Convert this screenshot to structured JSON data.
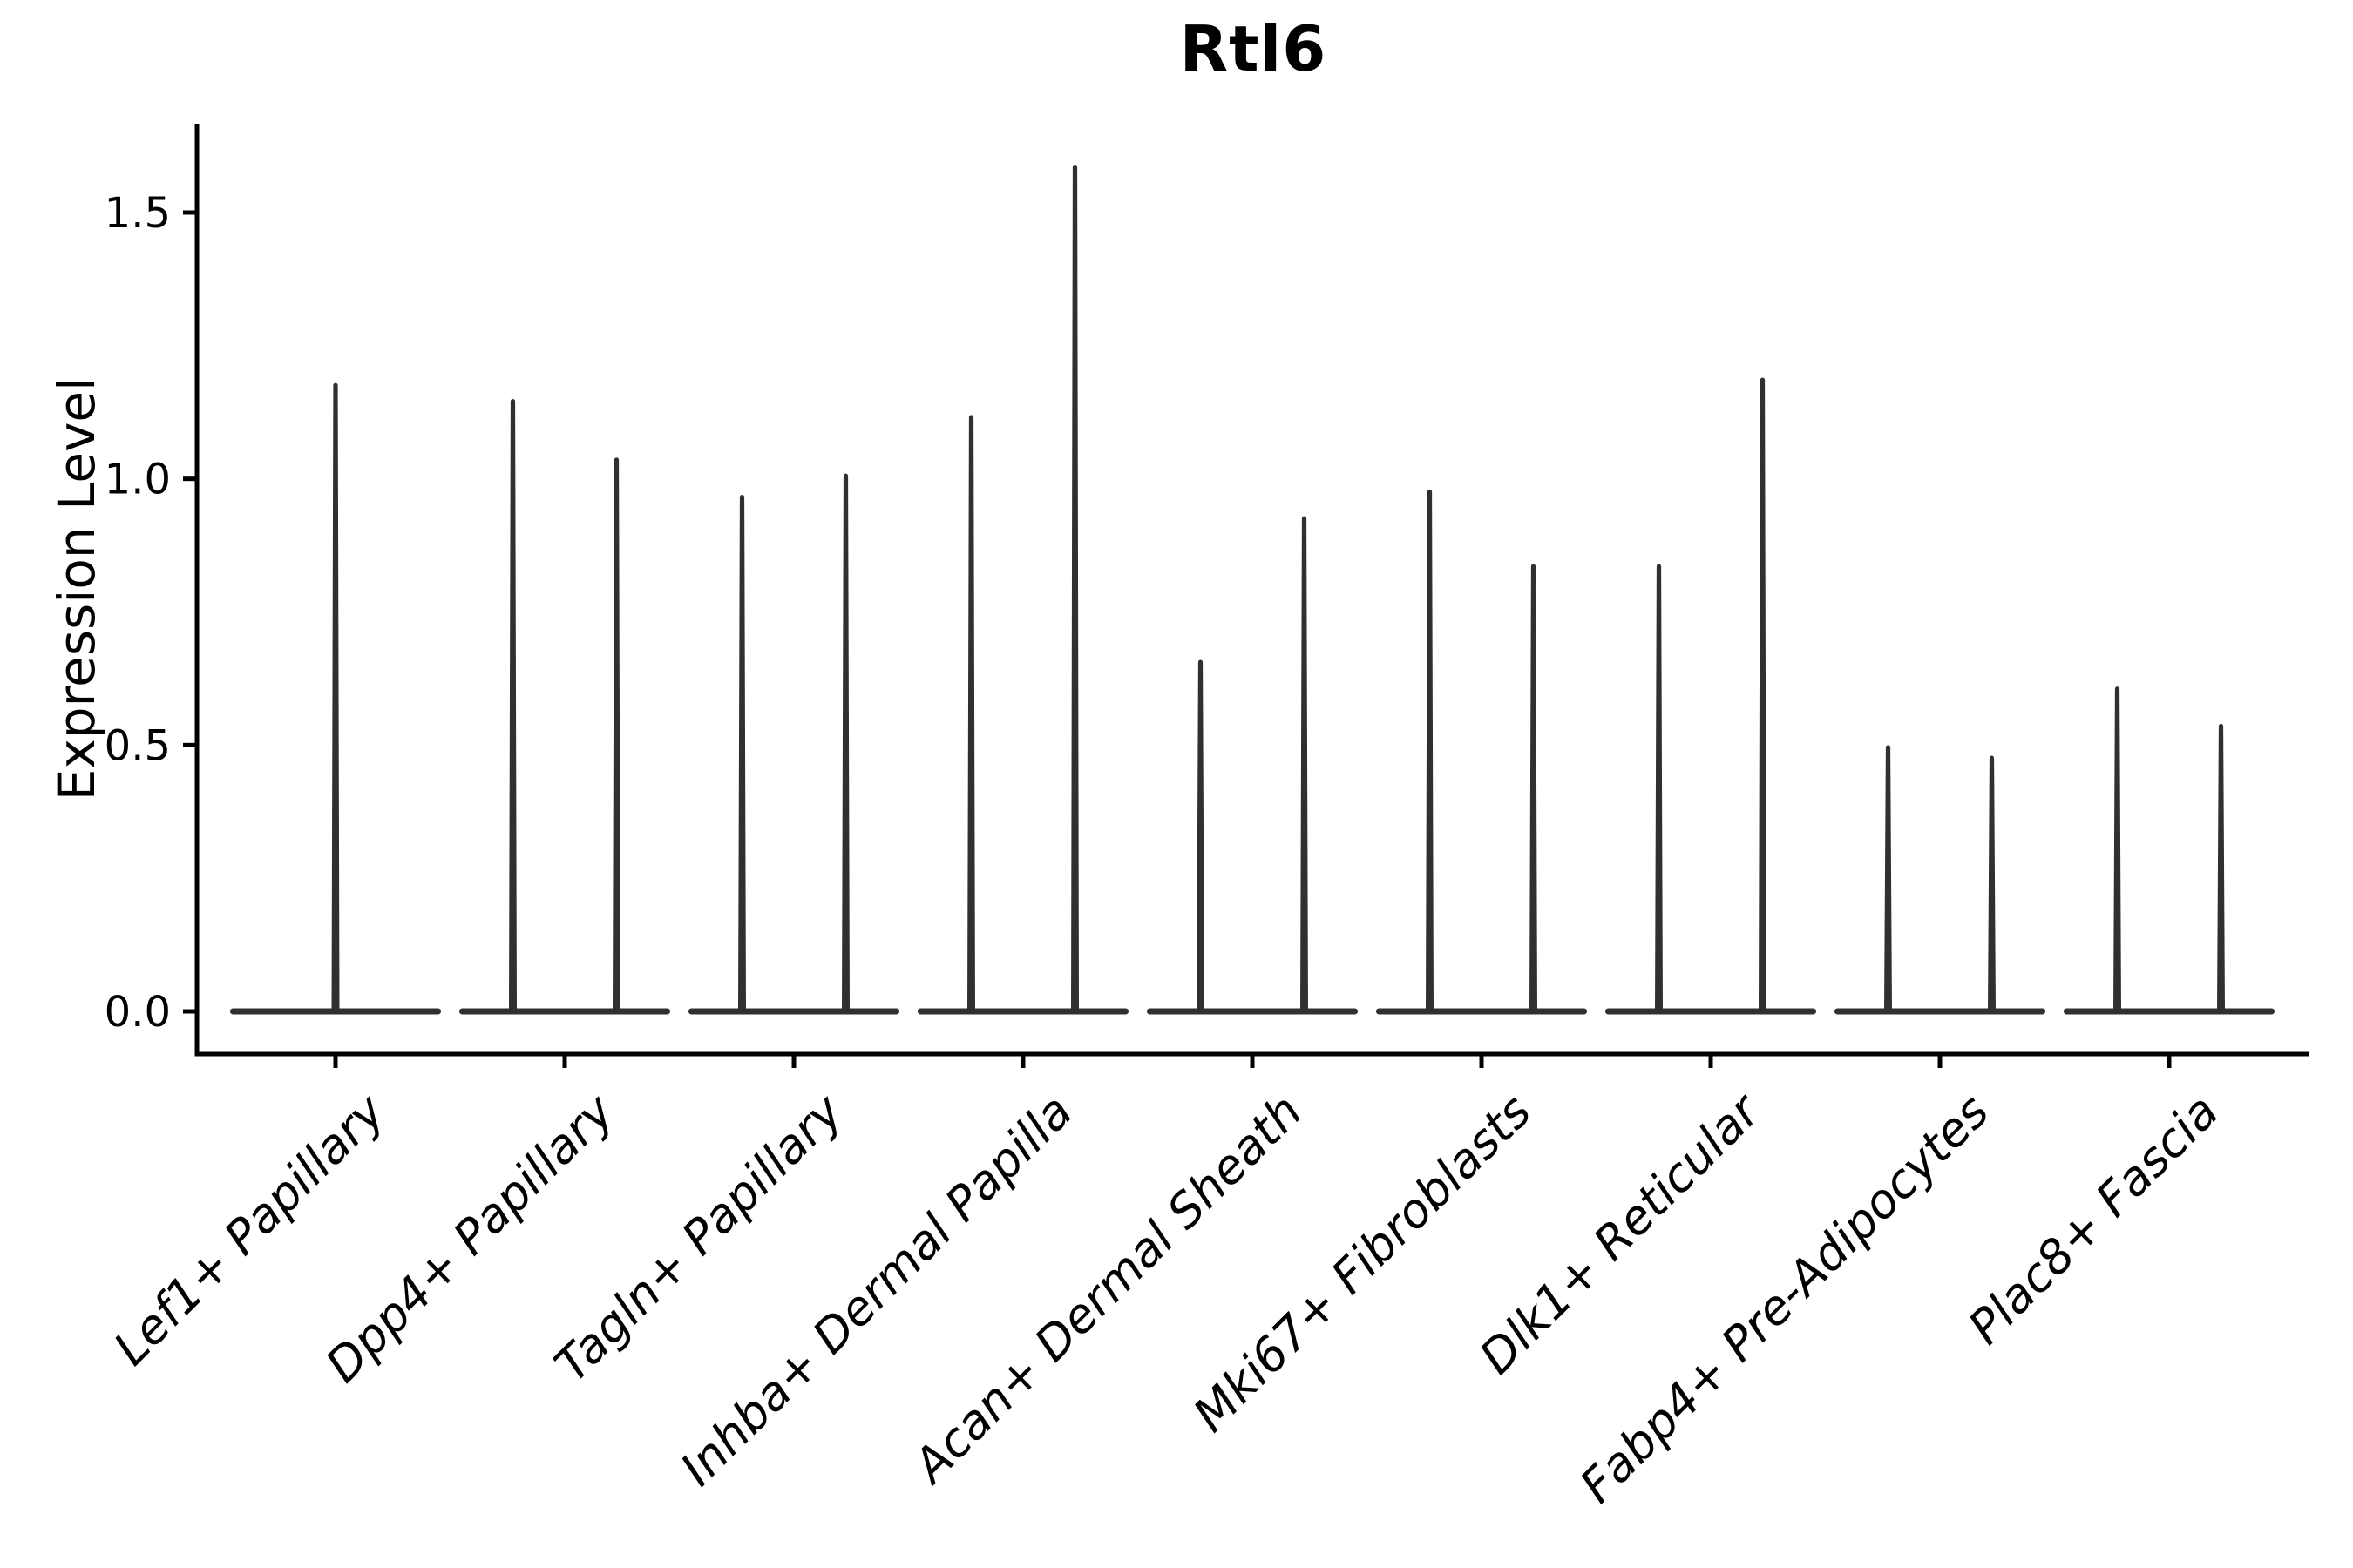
{
  "chart_data": {
    "type": "violin",
    "title": "Rtl6",
    "xlabel": "",
    "ylabel": "Expression Level",
    "yticks": [
      0.0,
      0.5,
      1.0,
      1.5
    ],
    "ylim": [
      0,
      1.67
    ],
    "grid": false,
    "legend": null,
    "x_tick_rotation": 45,
    "categories": [
      "Lef1+ Papillary",
      "Dpp4+ Papillary",
      "Tagln+ Papillary",
      "Inhba+ Dermal Papilla",
      "Acan+ Dermal Sheath",
      "Mki67+ Fibroblasts",
      "Dlk1+ Reticular",
      "Fabp4+ Pre-Adipocytes",
      "Plac8+ Fascia"
    ],
    "violins": [
      {
        "category": "Lef1+ Papillary",
        "spike_maxima": [
          1.18
        ]
      },
      {
        "category": "Dpp4+ Papillary",
        "spike_maxima": [
          1.15,
          1.04
        ]
      },
      {
        "category": "Tagln+ Papillary",
        "spike_maxima": [
          0.97,
          1.01
        ]
      },
      {
        "category": "Inhba+ Dermal Papilla",
        "spike_maxima": [
          1.12,
          1.59
        ]
      },
      {
        "category": "Acan+ Dermal Sheath",
        "spike_maxima": [
          0.66,
          0.93
        ]
      },
      {
        "category": "Mki67+ Fibroblasts",
        "spike_maxima": [
          0.98,
          0.84
        ]
      },
      {
        "category": "Dlk1+ Reticular",
        "spike_maxima": [
          0.84,
          1.19
        ]
      },
      {
        "category": "Fabp4+ Pre-Adipocytes",
        "spike_maxima": [
          0.5,
          0.48
        ]
      },
      {
        "category": "Plac8+ Fascia",
        "spike_maxima": [
          0.61,
          0.54
        ]
      }
    ],
    "shape_note": "Each violin is a flat wide body at expression 0 with a single thin spike up to its maximum; categories 2-9 contain two violins each, category 1 contains one centered violin.",
    "colors": {
      "violin": "#303030",
      "axis": "#000000",
      "background": "#ffffff",
      "text": "#000000"
    }
  }
}
